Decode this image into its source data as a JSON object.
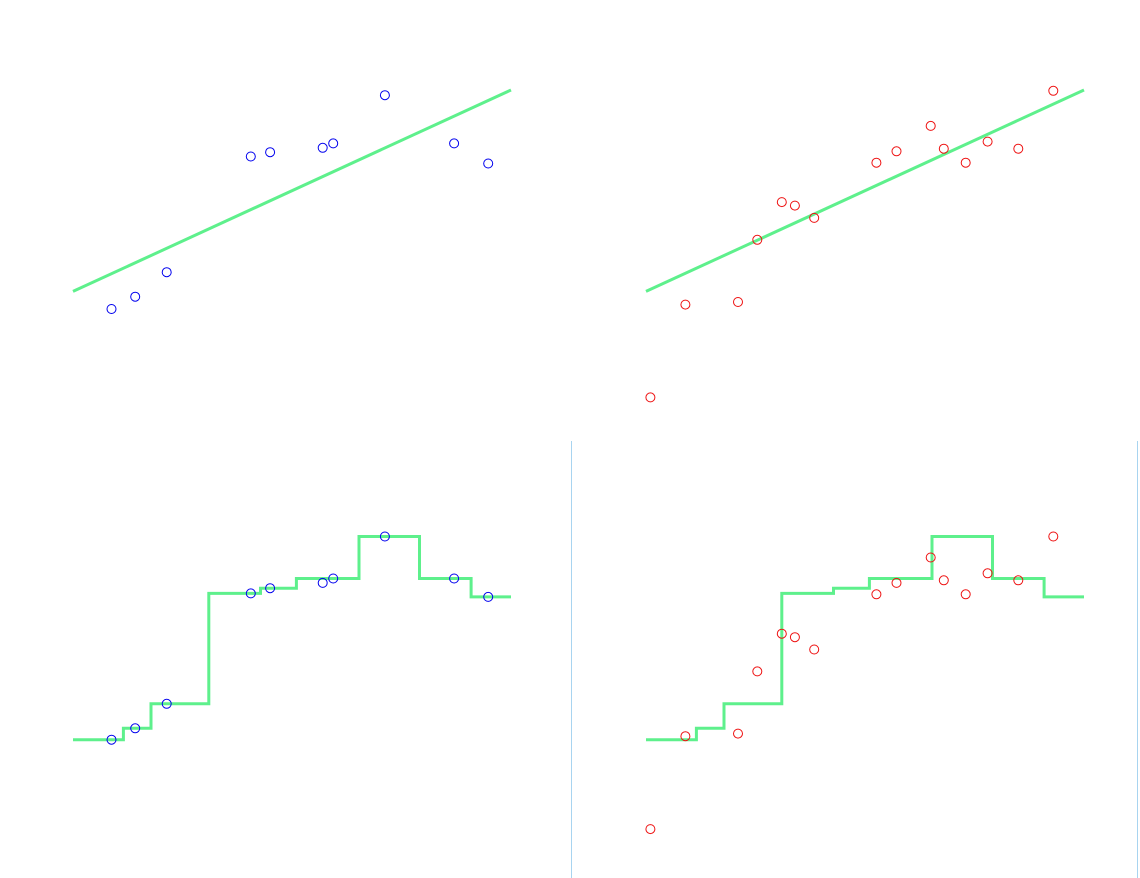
{
  "colors": {
    "fit_line": "#5ef08c",
    "train_points": "#0000ee",
    "test_points": "#ee1111",
    "divider": "#a8d4f0",
    "background": "#ffffff"
  },
  "chart_data": [
    {
      "type": "scatter",
      "panel": "top-left",
      "point_color": "train_points",
      "xlim": [
        0,
        10
      ],
      "ylim": [
        0,
        10
      ],
      "grid": false,
      "points": [
        {
          "x": 0.88,
          "y": 3.22
        },
        {
          "x": 1.42,
          "y": 3.5
        },
        {
          "x": 2.14,
          "y": 4.06
        },
        {
          "x": 4.06,
          "y": 6.7
        },
        {
          "x": 4.5,
          "y": 6.8
        },
        {
          "x": 5.7,
          "y": 6.9
        },
        {
          "x": 5.94,
          "y": 7.0
        },
        {
          "x": 7.12,
          "y": 8.1
        },
        {
          "x": 8.7,
          "y": 7.0
        },
        {
          "x": 9.48,
          "y": 6.54
        }
      ],
      "line": {
        "style": "linear",
        "x": [
          0,
          10
        ],
        "y": [
          3.62,
          8.22
        ]
      }
    },
    {
      "type": "scatter",
      "panel": "top-right",
      "point_color": "test_points",
      "xlim": [
        0,
        10
      ],
      "ylim": [
        0,
        10
      ],
      "grid": false,
      "points": [
        {
          "x": 0.1,
          "y": 1.2
        },
        {
          "x": 0.9,
          "y": 3.32
        },
        {
          "x": 2.1,
          "y": 3.38
        },
        {
          "x": 2.54,
          "y": 4.8
        },
        {
          "x": 3.1,
          "y": 5.66
        },
        {
          "x": 3.4,
          "y": 5.58
        },
        {
          "x": 3.84,
          "y": 5.3
        },
        {
          "x": 5.26,
          "y": 6.56
        },
        {
          "x": 5.72,
          "y": 6.82
        },
        {
          "x": 6.5,
          "y": 7.4
        },
        {
          "x": 6.8,
          "y": 6.88
        },
        {
          "x": 7.3,
          "y": 6.56
        },
        {
          "x": 7.8,
          "y": 7.04
        },
        {
          "x": 8.5,
          "y": 6.88
        },
        {
          "x": 9.3,
          "y": 8.2
        }
      ],
      "line": {
        "style": "linear",
        "x": [
          0,
          10
        ],
        "y": [
          3.62,
          8.22
        ]
      }
    },
    {
      "type": "line",
      "panel": "bottom-left",
      "point_color": "train_points",
      "xlim": [
        0,
        10
      ],
      "ylim": [
        0,
        10
      ],
      "grid": false,
      "points": [
        {
          "x": 0.88,
          "y": 3.5
        },
        {
          "x": 1.42,
          "y": 3.76
        },
        {
          "x": 2.14,
          "y": 4.32
        },
        {
          "x": 4.06,
          "y": 6.84
        },
        {
          "x": 4.5,
          "y": 6.96
        },
        {
          "x": 5.7,
          "y": 7.08
        },
        {
          "x": 5.94,
          "y": 7.18
        },
        {
          "x": 7.12,
          "y": 8.14
        },
        {
          "x": 8.7,
          "y": 7.18
        },
        {
          "x": 9.48,
          "y": 6.76
        }
      ],
      "line": {
        "style": "step",
        "x": [
          0,
          1.15,
          1.15,
          1.78,
          1.78,
          3.1,
          3.1,
          4.28,
          4.28,
          5.1,
          5.1,
          6.53,
          6.53,
          7.91,
          7.91,
          9.09,
          9.09,
          10
        ],
        "y": [
          3.5,
          3.5,
          3.76,
          3.76,
          4.32,
          4.32,
          6.84,
          6.84,
          6.96,
          6.96,
          7.18,
          7.18,
          8.14,
          8.14,
          7.18,
          7.18,
          6.76,
          6.76
        ]
      }
    },
    {
      "type": "line",
      "panel": "bottom-right",
      "point_color": "test_points",
      "xlim": [
        0,
        10
      ],
      "ylim": [
        0,
        10
      ],
      "grid": false,
      "points": [
        {
          "x": 0.1,
          "y": 1.46
        },
        {
          "x": 0.9,
          "y": 3.58
        },
        {
          "x": 2.1,
          "y": 3.64
        },
        {
          "x": 2.54,
          "y": 5.06
        },
        {
          "x": 3.1,
          "y": 5.92
        },
        {
          "x": 3.4,
          "y": 5.84
        },
        {
          "x": 3.84,
          "y": 5.56
        },
        {
          "x": 5.26,
          "y": 6.82
        },
        {
          "x": 5.72,
          "y": 7.08
        },
        {
          "x": 6.5,
          "y": 7.66
        },
        {
          "x": 6.8,
          "y": 7.14
        },
        {
          "x": 7.3,
          "y": 6.82
        },
        {
          "x": 7.8,
          "y": 7.3
        },
        {
          "x": 8.5,
          "y": 7.14
        },
        {
          "x": 9.3,
          "y": 8.14
        }
      ],
      "line": {
        "style": "step",
        "x": [
          0,
          1.15,
          1.15,
          1.78,
          1.78,
          3.1,
          3.1,
          4.28,
          4.28,
          5.1,
          5.1,
          6.53,
          6.53,
          7.91,
          7.91,
          9.09,
          9.09,
          10
        ],
        "y": [
          3.5,
          3.5,
          3.76,
          3.76,
          4.32,
          4.32,
          6.84,
          6.84,
          6.96,
          6.96,
          7.18,
          7.18,
          8.14,
          8.14,
          7.18,
          7.18,
          6.76,
          6.76
        ]
      }
    }
  ]
}
